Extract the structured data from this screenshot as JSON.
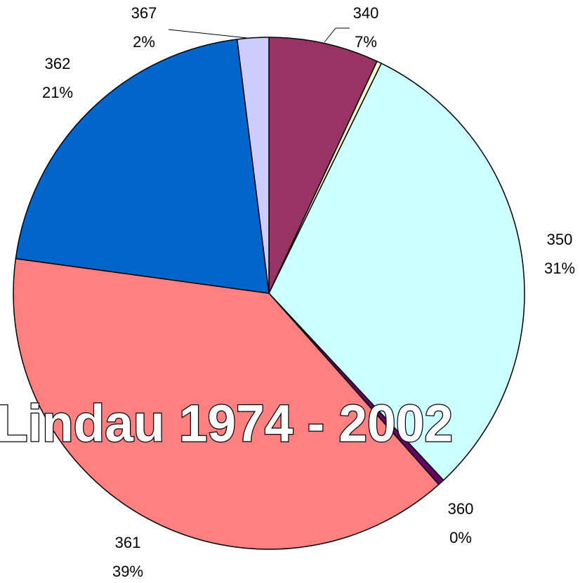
{
  "chart_data": {
    "type": "pie",
    "title": "Lindau 1974 - 2002",
    "categories": [
      "340",
      null,
      "350",
      "360",
      "361",
      "362",
      "367"
    ],
    "values": [
      7,
      0.3,
      31,
      0.4,
      39,
      21,
      2
    ],
    "value_labels": [
      "7%",
      null,
      "31%",
      "0%",
      "39%",
      "21%",
      "2%"
    ],
    "colors": [
      "#993366",
      "#FFFFCC",
      "#CCFFFF",
      "#660066",
      "#FF8080",
      "#0066CC",
      "#CCCCFF"
    ]
  }
}
